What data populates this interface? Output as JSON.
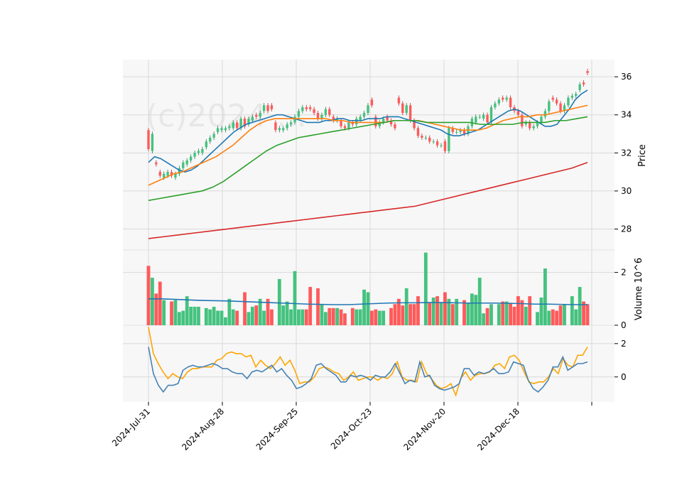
{
  "chart_data": {
    "type": "candlestick",
    "watermark": "(c)2024 ... ",
    "x_ticks": [
      "2024-Jul-31",
      "2024-Aug-28",
      "2024-Sep-25",
      "2024-Oct-23",
      "2024-Nov-20",
      "2024-Dec-18"
    ],
    "price_panel": {
      "ylabel": "Price",
      "ylim": [
        26.9,
        36.9
      ],
      "yticks": [
        28,
        30,
        32,
        34,
        36
      ],
      "candles_close": [
        32.2,
        33.0,
        31.4,
        30.8,
        30.9,
        31.0,
        30.8,
        30.9,
        31.2,
        31.5,
        31.6,
        31.8,
        32.0,
        32.1,
        32.2,
        32.6,
        32.8,
        33.0,
        33.3,
        33.3,
        33.3,
        33.4,
        33.6,
        33.3,
        33.8,
        33.4,
        33.8,
        33.9,
        33.9,
        34.1,
        34.5,
        34.2,
        34.3,
        33.2,
        33.3,
        33.3,
        33.5,
        33.6,
        33.9,
        34.2,
        34.4,
        34.3,
        34.3,
        34.1,
        33.8,
        34.0,
        34.3,
        34.0,
        33.7,
        33.8,
        33.4,
        33.3,
        33.6,
        33.5,
        33.8,
        33.9,
        34.1,
        34.5,
        34.5,
        33.4,
        33.6,
        33.8,
        33.7,
        33.5,
        33.3,
        34.6,
        34.1,
        34.5,
        33.7,
        33.3,
        32.9,
        32.8,
        32.8,
        32.6,
        32.6,
        32.4,
        32.4,
        32.1,
        33.3,
        33.1,
        33.1,
        33.2,
        33.0,
        33.4,
        33.8,
        33.9,
        33.9,
        34.0,
        33.6,
        34.4,
        34.6,
        34.8,
        34.8,
        34.9,
        34.4,
        34.2,
        34.0,
        33.4,
        33.6,
        33.3,
        33.4,
        33.6,
        33.9,
        34.2,
        34.7,
        34.8,
        34.6,
        34.2,
        34.5,
        34.9,
        35.0,
        35.1,
        35.6,
        35.6,
        36.2
      ],
      "candles_open": [
        33.2,
        32.1,
        31.5,
        31.0,
        30.7,
        30.8,
        31.0,
        30.7,
        30.9,
        31.2,
        31.4,
        31.6,
        31.8,
        32.0,
        32.0,
        32.3,
        32.6,
        32.8,
        33.1,
        33.2,
        33.2,
        33.3,
        33.3,
        33.6,
        33.3,
        33.8,
        33.5,
        33.7,
        34.0,
        33.9,
        34.2,
        34.5,
        34.5,
        33.6,
        33.2,
        33.2,
        33.3,
        33.5,
        33.6,
        33.9,
        34.2,
        34.4,
        34.4,
        34.3,
        34.1,
        33.8,
        34.0,
        34.3,
        33.9,
        33.7,
        33.7,
        33.4,
        33.3,
        33.6,
        33.5,
        33.7,
        33.9,
        34.1,
        34.8,
        33.9,
        33.4,
        33.6,
        33.9,
        33.7,
        33.5,
        34.9,
        34.6,
        34.1,
        34.5,
        33.7,
        33.3,
        32.9,
        32.8,
        32.8,
        32.6,
        32.6,
        32.4,
        32.6,
        32.1,
        33.3,
        33.1,
        33.1,
        33.2,
        33.0,
        33.4,
        33.6,
        33.9,
        33.8,
        34.0,
        33.6,
        34.4,
        34.6,
        34.9,
        34.8,
        34.9,
        34.4,
        34.2,
        34.0,
        33.5,
        33.6,
        33.3,
        33.4,
        33.6,
        33.9,
        34.2,
        34.9,
        34.8,
        34.6,
        34.2,
        34.5,
        34.9,
        35.0,
        35.3,
        35.7,
        36.3
      ],
      "moving_averages": [
        {
          "color": "#1f77b4",
          "values": [
            31.5,
            31.8,
            31.7,
            31.5,
            31.3,
            31.1,
            31.0,
            31.1,
            31.3,
            31.6,
            31.9,
            32.2,
            32.5,
            32.8,
            33.1,
            33.3,
            33.5,
            33.6,
            33.7,
            33.8,
            33.9,
            34.0,
            34.0,
            33.9,
            33.8,
            33.7,
            33.6,
            33.6,
            33.6,
            33.7,
            33.7,
            33.8,
            33.8,
            33.7,
            33.7,
            33.7,
            33.8,
            33.8,
            33.8,
            33.9,
            33.9,
            33.9,
            33.8,
            33.7,
            33.6,
            33.5,
            33.4,
            33.3,
            33.2,
            33.0,
            32.9,
            32.9,
            33.0,
            33.1,
            33.2,
            33.4,
            33.6,
            33.8,
            34.0,
            34.2,
            34.3,
            34.2,
            34.0,
            33.8,
            33.6,
            33.4,
            33.4,
            33.5,
            33.9,
            34.3,
            34.8,
            35.1,
            35.3
          ]
        },
        {
          "color": "#ff7f0e",
          "values": [
            30.3,
            30.5,
            30.7,
            30.9,
            31.0,
            31.2,
            31.4,
            31.6,
            31.8,
            32.1,
            32.4,
            32.8,
            33.2,
            33.5,
            33.7,
            33.8,
            33.8,
            33.8,
            33.8,
            33.8,
            33.8,
            33.8,
            33.7,
            33.7,
            33.6,
            33.6,
            33.6,
            33.6,
            33.6,
            33.7,
            33.7,
            33.7,
            33.7,
            33.6,
            33.5,
            33.4,
            33.3,
            33.2,
            33.2,
            33.2,
            33.3,
            33.5,
            33.7,
            33.8,
            33.9,
            33.9,
            34.0,
            34.0,
            34.1,
            34.2,
            34.3,
            34.4,
            34.5
          ]
        },
        {
          "color": "#2ca02c",
          "values": [
            29.5,
            29.6,
            29.7,
            29.8,
            29.9,
            30.0,
            30.2,
            30.5,
            30.9,
            31.3,
            31.7,
            32.1,
            32.4,
            32.6,
            32.8,
            32.9,
            33.0,
            33.1,
            33.2,
            33.3,
            33.4,
            33.5,
            33.6,
            33.7,
            33.7,
            33.7,
            33.6,
            33.6,
            33.6,
            33.6,
            33.6,
            33.5,
            33.5,
            33.5,
            33.5,
            33.6,
            33.6,
            33.6,
            33.7,
            33.7,
            33.8,
            33.9
          ]
        },
        {
          "color": "#d62728",
          "values": [
            27.5,
            27.6,
            27.7,
            27.8,
            27.9,
            28.0,
            28.1,
            28.2,
            28.3,
            28.4,
            28.5,
            28.6,
            28.7,
            28.8,
            28.9,
            29.0,
            29.1,
            29.2,
            29.4,
            29.6,
            29.8,
            30.0,
            30.2,
            30.4,
            30.6,
            30.8,
            31.0,
            31.2,
            31.5
          ]
        }
      ]
    },
    "volume_panel": {
      "ylabel": "Volume  10^6",
      "ylim": [
        0,
        2.85
      ],
      "yticks": [
        0,
        2
      ],
      "values": [
        2.25,
        1.8,
        1.2,
        1.65,
        0.95,
        0.9,
        0.95,
        0.5,
        0.55,
        1.1,
        0.7,
        0.7,
        0.7,
        0.65,
        0.6,
        0.7,
        0.55,
        0.55,
        0.3,
        1.0,
        0.6,
        0.55,
        1.25,
        0.5,
        0.7,
        0.75,
        1.0,
        0.55,
        1.0,
        0.6,
        1.75,
        0.75,
        0.9,
        0.6,
        2.05,
        0.6,
        0.6,
        0.6,
        1.45,
        1.4,
        0.8,
        0.5,
        0.65,
        0.65,
        0.65,
        0.6,
        0.45,
        0.65,
        0.6,
        0.6,
        1.35,
        1.25,
        0.55,
        0.6,
        0.55,
        0.55,
        0.65,
        0.8,
        1.0,
        0.75,
        1.4,
        0.8,
        0.8,
        1.1,
        2.75,
        0.85,
        1.05,
        1.1,
        0.85,
        1.25,
        1.0,
        0.8,
        1.0,
        0.95,
        0.85,
        1.2,
        1.15,
        1.8,
        0.45,
        0.65,
        0.8,
        0.8,
        0.9,
        0.9,
        0.85,
        0.7,
        1.1,
        0.95,
        0.7,
        1.1,
        0.5,
        1.05,
        2.15,
        0.55,
        0.6,
        0.55,
        0.75,
        0.8,
        1.1,
        0.6,
        1.45,
        0.9,
        0.8
      ],
      "avg_values": [
        1.0,
        1.0,
        0.98,
        0.96,
        0.94,
        0.93,
        0.92,
        0.9,
        0.88,
        0.86,
        0.84,
        0.82,
        0.8,
        0.79,
        0.78,
        0.78,
        0.8,
        0.82,
        0.84,
        0.85,
        0.85,
        0.86,
        0.86,
        0.85,
        0.84,
        0.84,
        0.84,
        0.83,
        0.82,
        0.8,
        0.8,
        0.79,
        0.78,
        0.78
      ]
    },
    "oscillator_panel": {
      "ylim": [
        -1.5,
        3.1
      ],
      "yticks": [
        0,
        2
      ],
      "series": [
        {
          "color": "#ffa500",
          "values": [
            3.0,
            1.4,
            0.8,
            0.3,
            -0.1,
            0.2,
            0.0,
            -0.1,
            0.3,
            0.5,
            0.5,
            0.6,
            0.6,
            0.6,
            1.0,
            1.1,
            1.4,
            1.5,
            1.4,
            1.4,
            1.2,
            1.3,
            0.6,
            1.0,
            0.7,
            0.5,
            0.8,
            1.2,
            0.7,
            1.0,
            0.4,
            -0.4,
            -0.3,
            -0.3,
            0.0,
            0.5,
            0.6,
            0.5,
            0.3,
            0.2,
            -0.2,
            0.0,
            0.3,
            -0.2,
            -0.1,
            0.0,
            0.0,
            -0.2,
            0.0,
            -0.1,
            0.2,
            0.9,
            0.0,
            -0.2,
            -0.2,
            -0.3,
            0.9,
            0.2,
            -0.1,
            -0.5,
            -0.7,
            -0.6,
            -0.4,
            -1.1,
            -0.1,
            0.3,
            -0.2,
            0.1,
            0.2,
            0.2,
            0.3,
            0.7,
            0.8,
            0.5,
            1.2,
            1.3,
            1.0,
            0.3,
            -0.3,
            -0.4,
            -0.3,
            -0.3,
            0.0,
            0.5,
            0.2,
            1.1,
            0.7,
            0.6,
            1.3,
            1.3,
            1.8
          ]
        },
        {
          "color": "#4682b4",
          "values": [
            1.8,
            0.2,
            -0.5,
            -0.9,
            -0.5,
            -0.5,
            -0.4,
            0.4,
            0.6,
            0.7,
            0.6,
            0.6,
            0.7,
            0.8,
            0.7,
            0.5,
            0.5,
            0.3,
            0.2,
            0.2,
            -0.1,
            0.3,
            0.4,
            0.3,
            0.5,
            0.7,
            0.3,
            0.5,
            0.1,
            -0.2,
            -0.7,
            -0.6,
            -0.4,
            -0.1,
            0.7,
            0.8,
            0.5,
            0.3,
            0.1,
            -0.3,
            -0.3,
            0.1,
            0.0,
            0.1,
            0.0,
            -0.2,
            0.1,
            0.0,
            0.0,
            0.3,
            0.8,
            0.2,
            -0.4,
            -0.2,
            -0.3,
            0.9,
            0.0,
            0.1,
            -0.5,
            -0.7,
            -0.8,
            -0.7,
            -0.6,
            -0.4,
            0.5,
            0.5,
            0.1,
            0.3,
            0.2,
            0.3,
            0.5,
            0.2,
            0.2,
            0.3,
            0.9,
            0.8,
            0.7,
            -0.2,
            -0.7,
            -0.9,
            -0.6,
            -0.2,
            0.6,
            0.6,
            1.2,
            0.4,
            0.6,
            0.8,
            0.8,
            0.9
          ]
        }
      ]
    },
    "colors": {
      "up": "#26a69a",
      "up_fill": "#45c27f",
      "down": "#ef5350",
      "down_fill": "#ff5a5a",
      "grid": "#d9d9d9",
      "panel_bg": "#f7f7f7"
    }
  }
}
